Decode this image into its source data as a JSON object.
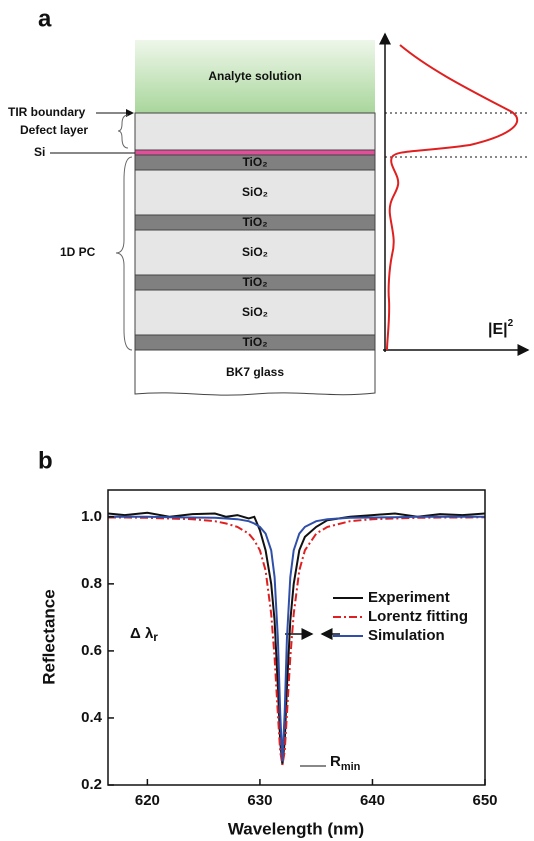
{
  "panel_a": {
    "label": "a",
    "layers": [
      "Analyte solution",
      "TiO₂",
      "SiO₂",
      "TiO₂",
      "SiO₂",
      "TiO₂",
      "SiO₂",
      "TiO₂",
      "BK7 glass"
    ],
    "side_labels": [
      "TIR boundary",
      "Defect layer",
      "Si",
      "1D PC"
    ],
    "field_axis": {
      "text": "|E|",
      "sup": "2"
    }
  },
  "chart_data": {
    "type": "line",
    "label": "b",
    "xlabel": "Wavelength (nm)",
    "ylabel": "Reflectance",
    "x": [
      616.5,
      618,
      620,
      622,
      624,
      626,
      627,
      628,
      629,
      629.5,
      630,
      630.5,
      631,
      631.3,
      631.6,
      631.8,
      632,
      632.2,
      632.4,
      632.7,
      633,
      633.5,
      634,
      635,
      636,
      638,
      640,
      642,
      644,
      646,
      648,
      650
    ],
    "series": [
      {
        "name": "Experiment",
        "color": "#111111",
        "linestyle": "solid",
        "values": [
          1.01,
          1.005,
          1.012,
          1.0,
          1.008,
          1.01,
          1.0,
          1.005,
          0.995,
          1.0,
          0.96,
          0.9,
          0.8,
          0.69,
          0.49,
          0.33,
          0.26,
          0.33,
          0.49,
          0.69,
          0.8,
          0.9,
          0.94,
          0.97,
          0.99,
          1.0,
          1.005,
          1.01,
          1.0,
          1.008,
          1.005,
          1.01
        ]
      },
      {
        "name": "Lorentz fitting",
        "color": "#e02020",
        "linestyle": "dashdot",
        "values": [
          0.998,
          0.998,
          0.997,
          0.995,
          0.993,
          0.987,
          0.98,
          0.97,
          0.95,
          0.93,
          0.9,
          0.84,
          0.71,
          0.58,
          0.41,
          0.3,
          0.26,
          0.3,
          0.41,
          0.58,
          0.71,
          0.84,
          0.9,
          0.95,
          0.97,
          0.987,
          0.993,
          0.995,
          0.997,
          0.998,
          0.998,
          0.999
        ]
      },
      {
        "name": "Simulation",
        "color": "#2f4fa8",
        "linestyle": "solid",
        "values": [
          1.0,
          1.0,
          1.0,
          0.999,
          0.998,
          0.997,
          0.995,
          0.993,
          0.987,
          0.98,
          0.97,
          0.95,
          0.9,
          0.82,
          0.635,
          0.416,
          0.27,
          0.416,
          0.635,
          0.82,
          0.9,
          0.95,
          0.97,
          0.987,
          0.993,
          0.997,
          0.998,
          0.999,
          1.0,
          1.0,
          1.0,
          1.0
        ]
      }
    ],
    "xlim": [
      616.5,
      650
    ],
    "ylim": [
      0.2,
      1.08
    ],
    "xticks": [
      620,
      630,
      640,
      650
    ],
    "yticks": [
      0.2,
      0.4,
      0.6,
      0.8,
      {
        "value": 1,
        "label": "1.0"
      }
    ],
    "legend": "right",
    "annotations": [
      {
        "text": "Δ λ",
        "sub": "r"
      },
      {
        "text": "R",
        "sub": "min"
      }
    ]
  }
}
